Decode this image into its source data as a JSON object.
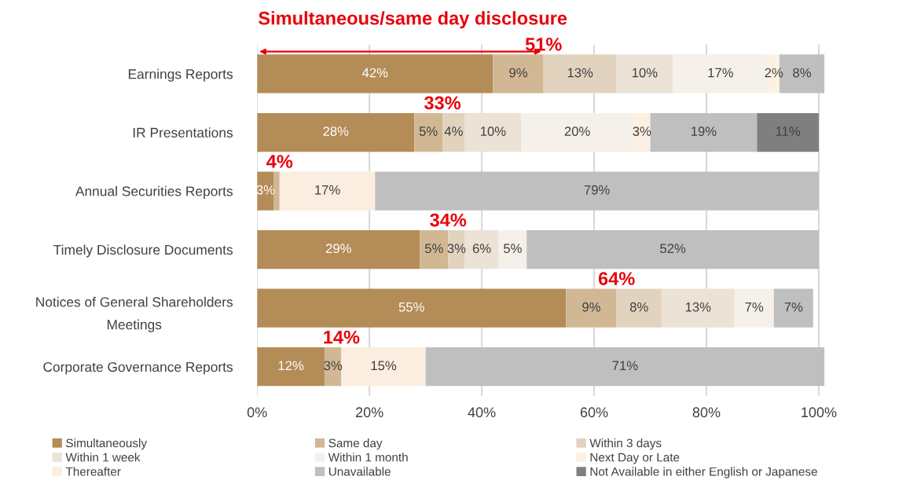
{
  "chart_data": {
    "type": "bar",
    "orientation": "horizontal",
    "stacked": true,
    "title": "Simultaneous/same day disclosure",
    "categories": [
      "Earnings Reports",
      "IR Presentations",
      "Annual Securities Reports",
      "Timely Disclosure Documents",
      "Notices of General Shareholders Meetings",
      "Corporate Governance Reports"
    ],
    "series": [
      {
        "name": "Simultaneously",
        "color": "#b48c58",
        "values": [
          42,
          28,
          3,
          29,
          55,
          12
        ],
        "value_labels": [
          "42%",
          "28%",
          "3%",
          "29%",
          "55%",
          "12%"
        ]
      },
      {
        "name": "Same day",
        "color": "#d2b794",
        "values": [
          9,
          5,
          1,
          5,
          9,
          3
        ],
        "value_labels": [
          "9%",
          "5%",
          null,
          "5%",
          "9%",
          "3%"
        ]
      },
      {
        "name": "Within 3 days",
        "color": "#e2d3bf",
        "values": [
          13,
          4,
          0,
          3,
          8,
          0
        ],
        "value_labels": [
          "13%",
          "4%",
          null,
          "3%",
          "8%",
          null
        ]
      },
      {
        "name": "Within 1 week",
        "color": "#ece2d5",
        "values": [
          10,
          10,
          0,
          6,
          13,
          0
        ],
        "value_labels": [
          "10%",
          "10%",
          null,
          "6%",
          "13%",
          null
        ]
      },
      {
        "name": "Within 1 month",
        "color": "#f5f0ea",
        "values": [
          17,
          20,
          0,
          5,
          7,
          0
        ],
        "value_labels": [
          "17%",
          "20%",
          null,
          "5%",
          "7%",
          null
        ]
      },
      {
        "name": "Next Day or Late",
        "color": "#fdf1e3",
        "values": [
          2,
          3,
          0,
          0,
          0,
          0
        ],
        "value_labels": [
          "2%",
          "3%",
          null,
          null,
          null,
          null
        ]
      },
      {
        "name": "Thereafter",
        "color": "#fbeee0",
        "values": [
          0,
          0,
          17,
          0,
          0,
          15
        ],
        "value_labels": [
          null,
          null,
          "17%",
          null,
          null,
          "15%"
        ]
      },
      {
        "name": "Unavailable",
        "color": "#bfbfbf",
        "values": [
          8,
          19,
          79,
          52,
          7,
          71
        ],
        "value_labels": [
          "8%",
          "19%",
          "79%",
          "52%",
          "7%",
          "71%"
        ]
      },
      {
        "name": "Not Available in either English or Japanese",
        "color": "#7f7f7f",
        "values": [
          0,
          11,
          0,
          0,
          0,
          0
        ],
        "value_labels": [
          null,
          "11%",
          null,
          null,
          null,
          null
        ]
      }
    ],
    "xlim": [
      0,
      101
    ],
    "xticks": [
      {
        "value": 0,
        "label": "0%"
      },
      {
        "value": 20,
        "label": "20%"
      },
      {
        "value": 40,
        "label": "40%"
      },
      {
        "value": 60,
        "label": "60%"
      },
      {
        "value": 80,
        "label": "80%"
      },
      {
        "value": 100,
        "label": "100%"
      }
    ],
    "grid": "x",
    "legend": "bottom",
    "annotations": [
      "51%",
      "33%",
      "4%",
      "34%",
      "64%",
      "14%"
    ]
  }
}
